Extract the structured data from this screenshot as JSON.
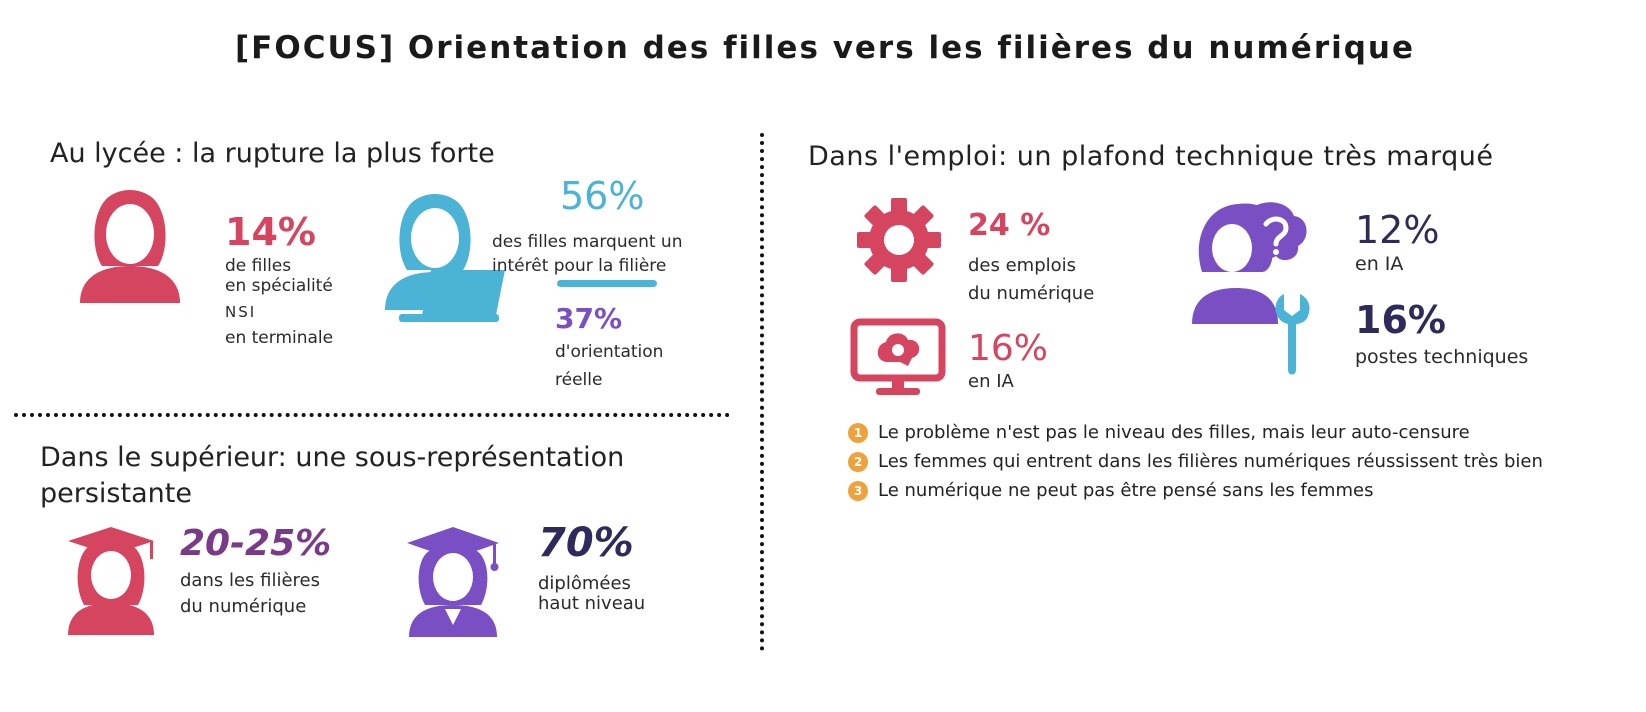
{
  "title": "[FOCUS] Orientation des filles vers les filières du numérique",
  "colors": {
    "red": "#d6455f",
    "blue": "#4bb3d6",
    "purple": "#7a4fc4",
    "navy": "#2e2a5c",
    "orange": "#f0a23a"
  },
  "lycee": {
    "heading": "Au lycée : la rupture la plus forte",
    "stat1": {
      "value": "14%",
      "line1": "de filles",
      "line2": "en spécialité",
      "line3": "NSI",
      "line4": "en terminale"
    },
    "stat2": {
      "value": "56%",
      "line1": "des filles marquent un",
      "line2": "intérêt pour la filière"
    },
    "stat3": {
      "value": "37%",
      "line1": "d'orientation",
      "line2": "réelle"
    }
  },
  "superieur": {
    "heading_line1": "Dans le supérieur: une sous-représentation",
    "heading_line2": "persistante",
    "stat1": {
      "value": "20-25%",
      "line1": "dans les filières",
      "line2": "du numérique"
    },
    "stat2": {
      "value": "70%",
      "line1": "diplômées",
      "line2": "haut niveau"
    }
  },
  "emploi": {
    "heading": "Dans l'emploi: un plafond technique très marqué",
    "stat1": {
      "value": "24 %",
      "line1": "des emplois",
      "line2": "du numérique"
    },
    "stat2": {
      "value": "16%",
      "line1": "en IA"
    },
    "stat3": {
      "value": "12%",
      "line1": "en IA"
    },
    "stat4": {
      "value": "16%",
      "line1": "postes techniques"
    },
    "bullets": [
      {
        "num": "1",
        "text": "Le problème n'est pas le niveau des filles, mais leur auto-censure"
      },
      {
        "num": "2",
        "text": "Les femmes qui entrent dans les filières numériques réussissent très bien"
      },
      {
        "num": "3",
        "text": "Le numérique ne peut pas être pensé sans les femmes"
      }
    ]
  }
}
